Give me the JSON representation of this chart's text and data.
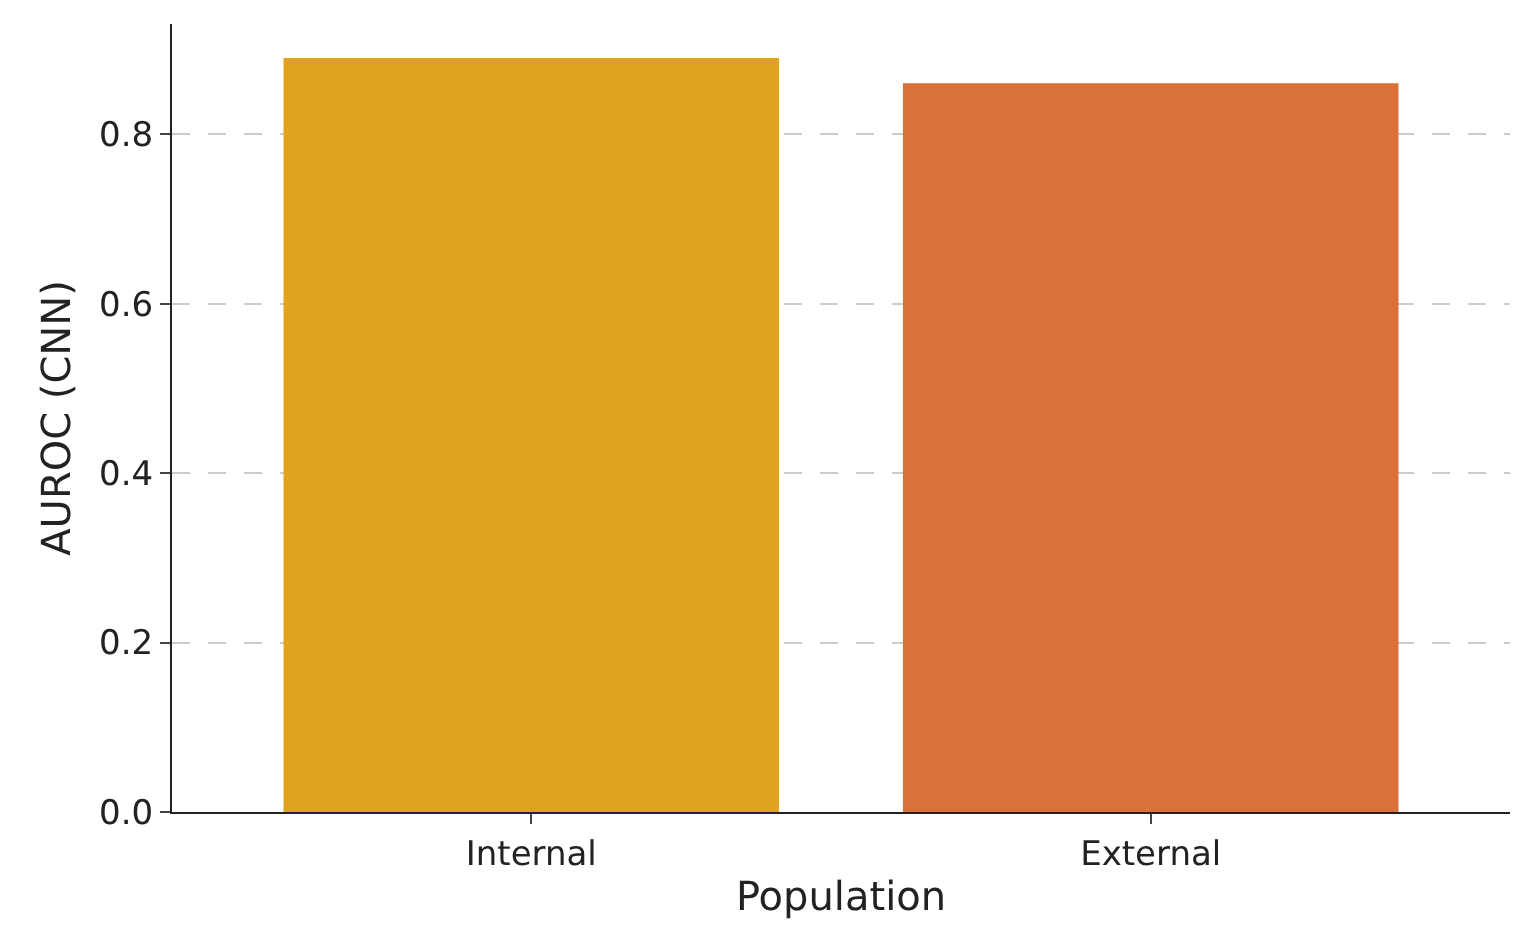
{
  "chart_data": {
    "type": "bar",
    "xlabel": "Population",
    "ylabel": "AUROC (CNN)",
    "categories": [
      "Internal",
      "External"
    ],
    "values": [
      0.89,
      0.86
    ],
    "colors": [
      "#dfa320",
      "#db713a"
    ],
    "ylim": [
      0,
      0.93
    ],
    "yticks": [
      {
        "value": 0,
        "label": "0.0"
      },
      {
        "value": 0.2,
        "label": "0.2"
      },
      {
        "value": 0.4,
        "label": "0.4"
      },
      {
        "value": 0.6,
        "label": "0.6"
      },
      {
        "value": 0.8,
        "label": "0.8"
      }
    ],
    "grid": "y"
  }
}
